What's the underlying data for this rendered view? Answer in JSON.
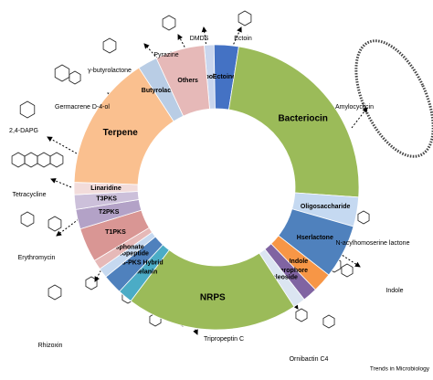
{
  "chart_data": {
    "type": "pie",
    "categories": [
      "Arplpolyene",
      "Ectoine",
      "Bacteriocin",
      "Oligosaccharide",
      "Hserlactone",
      "Indole",
      "Siderophore",
      "Nucleoside",
      "NRPS",
      "Melanin",
      "NRPS-PKS Hybrid",
      "Lassopeptide",
      "Phosphonate",
      "T1PKS",
      "T2PKS",
      "T3PKS",
      "Linaridine",
      "Terpene",
      "Butyrolactone",
      "Others"
    ],
    "values": [
      4,
      10,
      85,
      12,
      22,
      8,
      6,
      5,
      70,
      6,
      8,
      4,
      4,
      14,
      8,
      6,
      5,
      55,
      8,
      20
    ],
    "colors": [
      "#c9d6ee",
      "#4472c4",
      "#9bbb59",
      "#c5d9f1",
      "#4f81bd",
      "#f79646",
      "#8064a2",
      "#dbe5f1",
      "#9bbb59",
      "#4bacc6",
      "#4f81bd",
      "#c6d9f0",
      "#e6b9b8",
      "#d99694",
      "#b3a2c7",
      "#ccc0da",
      "#f2dcdb",
      "#fac08f",
      "#b9cde5",
      "#e6b9b8"
    ],
    "annotations": [
      "γ-butyrolactone",
      "Pyrazine",
      "DMDS",
      "Ectoin",
      "Germacrene D-4-ol",
      "Amylocyclicin",
      "2,4-DAPG",
      "Tetracycline",
      "Erythromycin",
      "N-acylhomoserine lactone",
      "Indole",
      "Rhizoxin",
      "Tripropeptin C",
      "Ornibactin C4"
    ],
    "credit": "Trends in Microbiology"
  }
}
